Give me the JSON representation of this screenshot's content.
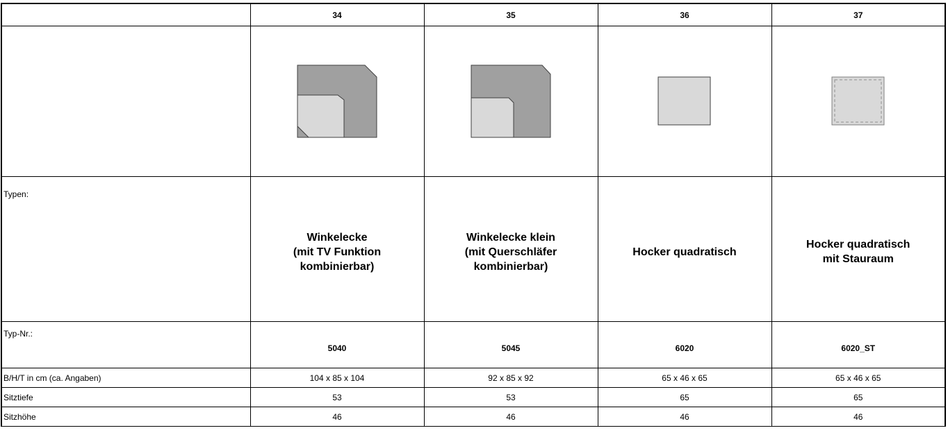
{
  "columns": [
    {
      "number": "34",
      "type_name": "Winkelecke\n(mit TV Funktion\nkombinierbar)",
      "typ_nr": "5040",
      "dimensions": "104 x 85 x 104",
      "sitztiefe": "53",
      "sitzhoehe": "46",
      "icon": "corner-sofa-icon"
    },
    {
      "number": "35",
      "type_name": "Winkelecke klein\n(mit Querschläfer\nkombinierbar)",
      "typ_nr": "5045",
      "dimensions": "92 x 85 x 92",
      "sitztiefe": "53",
      "sitzhoehe": "46",
      "icon": "small-corner-sofa-icon"
    },
    {
      "number": "36",
      "type_name": "Hocker quadratisch",
      "typ_nr": "6020",
      "dimensions": "65 x 46 x 65",
      "sitztiefe": "65",
      "sitzhoehe": "46",
      "icon": "square-stool-icon"
    },
    {
      "number": "37",
      "type_name": "Hocker quadratisch\nmit Stauraum",
      "typ_nr": "6020_ST",
      "dimensions": "65 x 46 x 65",
      "sitztiefe": "65",
      "sitzhoehe": "46",
      "icon": "storage-stool-icon"
    }
  ],
  "row_labels": {
    "types": "Typen:",
    "typ_nr": "Typ-Nr.:",
    "dimensions": "B/H/T in cm (ca. Angaben)",
    "sitztiefe": "Sitztiefe",
    "sitzhoehe": "Sitzhöhe"
  },
  "colors": {
    "back_fill": "#a0a0a0",
    "seat_fill": "#d9d9d9",
    "outline": "#404040",
    "dash": "#909090"
  }
}
